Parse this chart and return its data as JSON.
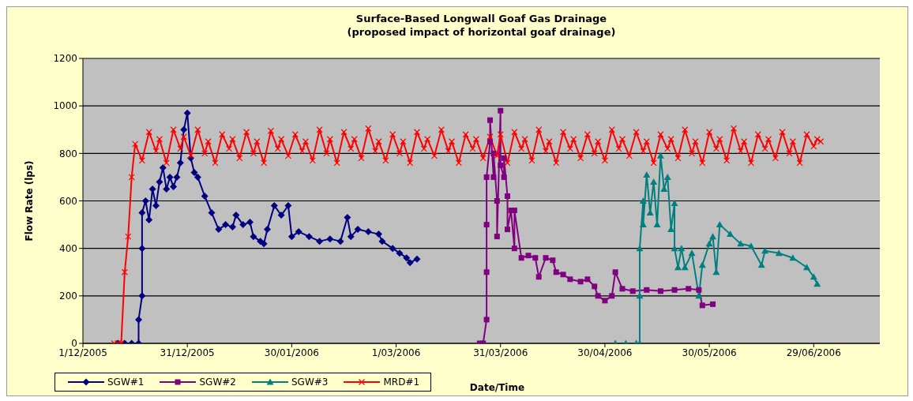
{
  "chart_data": {
    "type": "line",
    "title": "Surface-Based Longwall Goaf Gas Drainage",
    "subtitle": "(proposed impact of horizontal goaf drainage)",
    "xlabel": "Date/Time",
    "ylabel": "Flow Rate (lps)",
    "xlim": [
      "2005-12-01",
      "2006-07-18"
    ],
    "xticks": [
      {
        "value": "2005-12-01",
        "label": "1/12/2005"
      },
      {
        "value": "2005-12-31",
        "label": "31/12/2005"
      },
      {
        "value": "2006-01-30",
        "label": "30/01/2006"
      },
      {
        "value": "2006-03-01",
        "label": "1/03/2006"
      },
      {
        "value": "2006-03-31",
        "label": "31/03/2006"
      },
      {
        "value": "2006-04-30",
        "label": "30/04/2006"
      },
      {
        "value": "2006-05-30",
        "label": "30/05/2006"
      },
      {
        "value": "2006-06-29",
        "label": "29/06/2006"
      }
    ],
    "ylim": [
      0,
      1200
    ],
    "yticks": [
      0,
      200,
      400,
      600,
      800,
      1000,
      1200
    ],
    "grid": "y",
    "legend": "bottom",
    "series": [
      {
        "name": "SGW#1",
        "color": "#000080",
        "marker": "diamond",
        "x": [
          "2005-12-11",
          "2005-12-13",
          "2005-12-15",
          "2005-12-17",
          "2005-12-17",
          "2005-12-18",
          "2005-12-18",
          "2005-12-18",
          "2005-12-19",
          "2005-12-20",
          "2005-12-21",
          "2005-12-22",
          "2005-12-23",
          "2005-12-24",
          "2005-12-25",
          "2005-12-26",
          "2005-12-27",
          "2005-12-28",
          "2005-12-29",
          "2005-12-30",
          "2005-12-31",
          "2006-01-01",
          "2006-01-02",
          "2006-01-03",
          "2006-01-05",
          "2006-01-07",
          "2006-01-09",
          "2006-01-11",
          "2006-01-13",
          "2006-01-14",
          "2006-01-16",
          "2006-01-18",
          "2006-01-19",
          "2006-01-21",
          "2006-01-22",
          "2006-01-23",
          "2006-01-25",
          "2006-01-27",
          "2006-01-29",
          "2006-01-30",
          "2006-02-01",
          "2006-02-04",
          "2006-02-07",
          "2006-02-10",
          "2006-02-13",
          "2006-02-15",
          "2006-02-16",
          "2006-02-18",
          "2006-02-21",
          "2006-02-24",
          "2006-02-25",
          "2006-02-28",
          "2006-03-02",
          "2006-03-04",
          "2006-03-05",
          "2006-03-07"
        ],
        "values": [
          0,
          0,
          0,
          0,
          100,
          200,
          400,
          550,
          600,
          520,
          650,
          580,
          680,
          740,
          650,
          700,
          660,
          700,
          760,
          900,
          970,
          780,
          720,
          700,
          620,
          550,
          480,
          500,
          490,
          540,
          500,
          510,
          450,
          430,
          420,
          480,
          580,
          540,
          580,
          450,
          470,
          450,
          430,
          440,
          430,
          530,
          450,
          480,
          470,
          460,
          430,
          400,
          380,
          360,
          340,
          355
        ]
      },
      {
        "name": "SGW#2",
        "color": "#800080",
        "marker": "square",
        "x": [
          "2006-03-25",
          "2006-03-26",
          "2006-03-27",
          "2006-03-27",
          "2006-03-27",
          "2006-03-27",
          "2006-03-28",
          "2006-03-28",
          "2006-03-29",
          "2006-03-29",
          "2006-03-30",
          "2006-03-30",
          "2006-03-31",
          "2006-03-31",
          "2006-04-01",
          "2006-04-01",
          "2006-04-02",
          "2006-04-02",
          "2006-04-03",
          "2006-04-04",
          "2006-04-04",
          "2006-04-06",
          "2006-04-08",
          "2006-04-10",
          "2006-04-11",
          "2006-04-13",
          "2006-04-15",
          "2006-04-16",
          "2006-04-18",
          "2006-04-20",
          "2006-04-23",
          "2006-04-25",
          "2006-04-27",
          "2006-04-28",
          "2006-04-30",
          "2006-05-02",
          "2006-05-03",
          "2006-05-05",
          "2006-05-08",
          "2006-05-12",
          "2006-05-16",
          "2006-05-20",
          "2006-05-24",
          "2006-05-27",
          "2006-05-28",
          "2006-05-31"
        ],
        "values": [
          0,
          0,
          100,
          300,
          500,
          700,
          850,
          940,
          700,
          800,
          600,
          450,
          980,
          750,
          700,
          780,
          620,
          480,
          560,
          400,
          560,
          360,
          370,
          360,
          280,
          360,
          350,
          300,
          290,
          270,
          260,
          270,
          240,
          200,
          180,
          200,
          300,
          230,
          220,
          225,
          220,
          225,
          230,
          225,
          160,
          165
        ]
      },
      {
        "name": "SGW#3",
        "color": "#008080",
        "marker": "triangle",
        "x": [
          "2006-05-03",
          "2006-05-06",
          "2006-05-09",
          "2006-05-10",
          "2006-05-10",
          "2006-05-10",
          "2006-05-11",
          "2006-05-11",
          "2006-05-12",
          "2006-05-13",
          "2006-05-14",
          "2006-05-15",
          "2006-05-16",
          "2006-05-17",
          "2006-05-18",
          "2006-05-19",
          "2006-05-20",
          "2006-05-20",
          "2006-05-21",
          "2006-05-22",
          "2006-05-23",
          "2006-05-25",
          "2006-05-27",
          "2006-05-28",
          "2006-05-30",
          "2006-05-31",
          "2006-06-01",
          "2006-06-02",
          "2006-06-05",
          "2006-06-08",
          "2006-06-11",
          "2006-06-14",
          "2006-06-15",
          "2006-06-19",
          "2006-06-23",
          "2006-06-27",
          "2006-06-29",
          "2006-06-30"
        ],
        "values": [
          0,
          0,
          0,
          0,
          200,
          400,
          600,
          500,
          710,
          550,
          680,
          500,
          790,
          650,
          700,
          480,
          590,
          400,
          320,
          400,
          320,
          380,
          200,
          330,
          420,
          450,
          300,
          500,
          460,
          420,
          410,
          330,
          390,
          380,
          360,
          320,
          280,
          250
        ]
      },
      {
        "name": "MRD#1",
        "color": "#ff0000",
        "marker": "cross",
        "x": [
          "2005-12-10",
          "2005-12-11",
          "2005-12-12",
          "2005-12-13",
          "2005-12-14",
          "2005-12-15",
          "2005-12-16",
          "2005-12-18",
          "2005-12-20",
          "2005-12-22",
          "2005-12-23",
          "2005-12-25",
          "2005-12-27",
          "2005-12-29",
          "2005-12-30",
          "2006-01-01",
          "2006-01-03",
          "2006-01-05",
          "2006-01-06",
          "2006-01-08",
          "2006-01-10",
          "2006-01-12",
          "2006-01-13",
          "2006-01-15",
          "2006-01-17",
          "2006-01-19",
          "2006-01-20",
          "2006-01-22",
          "2006-01-24",
          "2006-01-26",
          "2006-01-27",
          "2006-01-29",
          "2006-01-31",
          "2006-02-02",
          "2006-02-03",
          "2006-02-05",
          "2006-02-07",
          "2006-02-09",
          "2006-02-10",
          "2006-02-12",
          "2006-02-14",
          "2006-02-16",
          "2006-02-17",
          "2006-02-19",
          "2006-02-21",
          "2006-02-23",
          "2006-02-24",
          "2006-02-26",
          "2006-02-28",
          "2006-03-02",
          "2006-03-03",
          "2006-03-05",
          "2006-03-07",
          "2006-03-09",
          "2006-03-10",
          "2006-03-12",
          "2006-03-14",
          "2006-03-16",
          "2006-03-17",
          "2006-03-19",
          "2006-03-21",
          "2006-03-23",
          "2006-03-24",
          "2006-03-26",
          "2006-03-28",
          "2006-03-30",
          "2006-03-31",
          "2006-04-02",
          "2006-04-04",
          "2006-04-06",
          "2006-04-07",
          "2006-04-09",
          "2006-04-11",
          "2006-04-13",
          "2006-04-14",
          "2006-04-16",
          "2006-04-18",
          "2006-04-20",
          "2006-04-21",
          "2006-04-23",
          "2006-04-25",
          "2006-04-27",
          "2006-04-28",
          "2006-04-30",
          "2006-05-02",
          "2006-05-04",
          "2006-05-05",
          "2006-05-07",
          "2006-05-09",
          "2006-05-11",
          "2006-05-12",
          "2006-05-14",
          "2006-05-16",
          "2006-05-18",
          "2006-05-19",
          "2006-05-21",
          "2006-05-23",
          "2006-05-25",
          "2006-05-26",
          "2006-05-28",
          "2006-05-30",
          "2006-06-01",
          "2006-06-02",
          "2006-06-04",
          "2006-06-06",
          "2006-06-08",
          "2006-06-09",
          "2006-06-11",
          "2006-06-13",
          "2006-06-15",
          "2006-06-16",
          "2006-06-18",
          "2006-06-20",
          "2006-06-22",
          "2006-06-23",
          "2006-06-25",
          "2006-06-27",
          "2006-06-29",
          "2006-06-30",
          "2006-07-01"
        ],
        "values": [
          0,
          0,
          0,
          300,
          450,
          700,
          840,
          770,
          890,
          810,
          860,
          760,
          900,
          820,
          870,
          790,
          900,
          800,
          850,
          760,
          880,
          820,
          860,
          780,
          890,
          800,
          850,
          760,
          895,
          820,
          860,
          790,
          880,
          810,
          850,
          770,
          900,
          800,
          860,
          760,
          890,
          820,
          860,
          780,
          905,
          810,
          850,
          770,
          880,
          800,
          850,
          760,
          890,
          820,
          860,
          790,
          900,
          810,
          850,
          760,
          880,
          820,
          860,
          780,
          870,
          790,
          880,
          760,
          890,
          820,
          860,
          770,
          900,
          810,
          850,
          760,
          890,
          820,
          860,
          780,
          880,
          800,
          850,
          770,
          900,
          820,
          860,
          790,
          890,
          810,
          850,
          760,
          880,
          820,
          860,
          780,
          900,
          800,
          850,
          760,
          890,
          820,
          860,
          770,
          905,
          810,
          850,
          760,
          880,
          820,
          860,
          780,
          890,
          800,
          850,
          760,
          880,
          830,
          860,
          850
        ]
      }
    ]
  }
}
